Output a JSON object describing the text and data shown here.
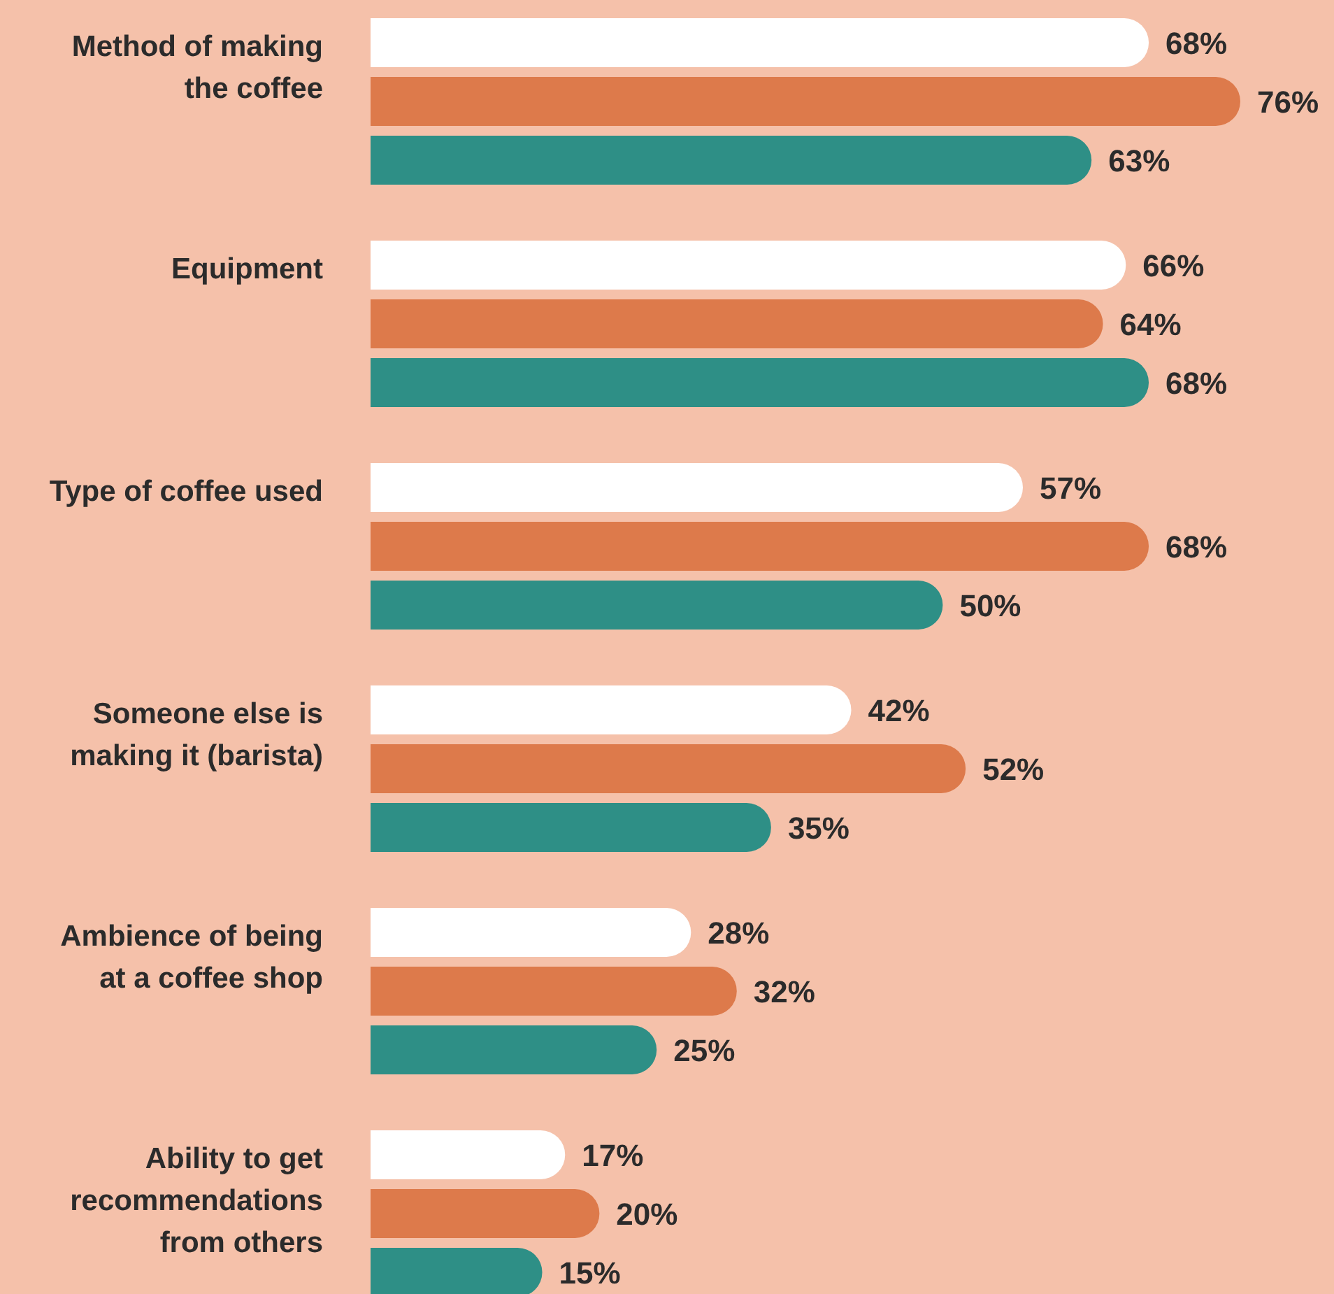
{
  "chart_data": {
    "type": "bar",
    "orientation": "horizontal",
    "categories": [
      "Method of making the coffee",
      "Equipment",
      "Type of coffee used",
      "Someone else is making it (barista)",
      "Ambience of being at a coffee shop",
      "Ability to get recommendations from others"
    ],
    "series": [
      {
        "color": "#ffffff",
        "values": [
          68,
          66,
          57,
          42,
          28,
          17
        ],
        "value_labels": [
          "68%",
          "66%",
          "57%",
          "42%",
          "28%",
          "17%"
        ]
      },
      {
        "color": "#dd7a4b",
        "values": [
          76,
          64,
          68,
          52,
          32,
          20
        ],
        "value_labels": [
          "76%",
          "64%",
          "68%",
          "52%",
          "32%",
          "20%"
        ]
      },
      {
        "color": "#2e8f86",
        "values": [
          63,
          68,
          50,
          35,
          25,
          15
        ],
        "value_labels": [
          "63%",
          "68%",
          "50%",
          "35%",
          "25%",
          "15%"
        ]
      }
    ]
  }
}
